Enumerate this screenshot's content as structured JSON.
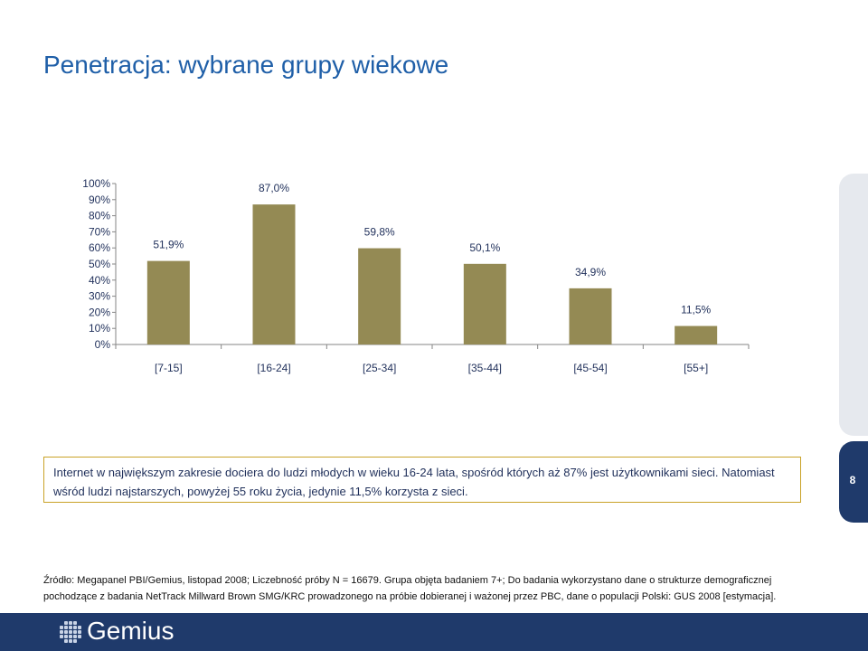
{
  "title": "Penetracja: wybrane grupy wiekowe",
  "chart_data": {
    "type": "bar",
    "categories": [
      "[7-15]",
      "[16-24]",
      "[25-34]",
      "[35-44]",
      "[45-54]",
      "[55+]"
    ],
    "values": [
      51.9,
      87.0,
      59.8,
      50.1,
      34.9,
      11.5
    ],
    "value_labels": [
      "51,9%",
      "87,0%",
      "59,8%",
      "50,1%",
      "34,9%",
      "11,5%"
    ],
    "yticks": [
      "0%",
      "10%",
      "20%",
      "30%",
      "40%",
      "50%",
      "60%",
      "70%",
      "80%",
      "90%",
      "100%"
    ],
    "ylim": [
      0,
      100
    ],
    "title": "",
    "xlabel": "",
    "ylabel": "",
    "grid": false,
    "bar_color": "#948a54"
  },
  "summary": "Internet w największym zakresie dociera do ludzi młodych w wieku 16-24 lata, spośród których aż 87% jest użytkownikami sieci. Natomiast wśród ludzi najstarszych, powyżej 55 roku życia, jedynie 11,5% korzysta z sieci.",
  "page_number": "8",
  "source_line1": "Źródło: Megapanel PBI/Gemius, listopad 2008; Liczebność próby N = 16679. Grupa objęta badaniem 7+; Do badania wykorzystano dane o strukturze demograficznej",
  "source_line2": "pochodzące z badania NetTrack Millward Brown SMG/KRC prowadzonego na próbie dobieranej i ważonej przez PBC, dane o populacji Polski: GUS 2008 [estymacja].",
  "footer": {
    "logo_text": "Gemius",
    "logo_icon": "dot-grid-icon",
    "background": "#1f3a6b"
  }
}
